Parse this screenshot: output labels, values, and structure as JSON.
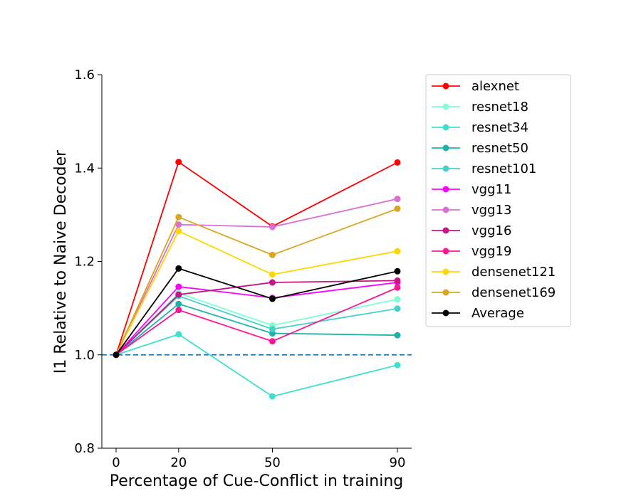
{
  "chart_data": {
    "type": "line",
    "title": "",
    "xlabel": "Percentage of Cue-Conflict in training",
    "ylabel": "I1 Relative to Naive Decoder",
    "x": [
      0,
      20,
      50,
      90
    ],
    "xticks": [
      "0",
      "20",
      "50",
      "90"
    ],
    "ylim": [
      0.8,
      1.6
    ],
    "yticks": [
      "0.8",
      "1.0",
      "1.2",
      "1.4",
      "1.6"
    ],
    "grid": false,
    "legend_position": "outside-right",
    "reference_line": {
      "y": 1.0,
      "style": "dashed",
      "color": "#1f77b4"
    },
    "series": [
      {
        "name": "alexnet",
        "color": "#ff0000",
        "values": [
          1.0,
          1.413,
          1.275,
          1.412
        ]
      },
      {
        "name": "resnet18",
        "color": "#7fffd4",
        "values": [
          1.0,
          1.132,
          1.063,
          1.119
        ]
      },
      {
        "name": "resnet34",
        "color": "#40e0d0",
        "values": [
          1.0,
          1.044,
          0.911,
          0.978
        ]
      },
      {
        "name": "resnet50",
        "color": "#20b2aa",
        "values": [
          1.0,
          1.109,
          1.046,
          1.042
        ]
      },
      {
        "name": "resnet101",
        "color": "#48d1cc",
        "values": [
          1.0,
          1.126,
          1.055,
          1.099
        ]
      },
      {
        "name": "vgg11",
        "color": "#ff00ff",
        "values": [
          1.0,
          1.146,
          1.122,
          1.155
        ]
      },
      {
        "name": "vgg13",
        "color": "#da70d6",
        "values": [
          1.0,
          1.279,
          1.274,
          1.334
        ]
      },
      {
        "name": "vgg16",
        "color": "#c71585",
        "values": [
          1.0,
          1.129,
          1.155,
          1.159
        ]
      },
      {
        "name": "vgg19",
        "color": "#ff1493",
        "values": [
          1.0,
          1.096,
          1.029,
          1.144
        ]
      },
      {
        "name": "densenet121",
        "color": "#ffd700",
        "values": [
          1.0,
          1.265,
          1.172,
          1.222
        ]
      },
      {
        "name": "densenet169",
        "color": "#daa520",
        "values": [
          1.0,
          1.295,
          1.214,
          1.313
        ]
      },
      {
        "name": "Average",
        "color": "#000000",
        "values": [
          1.0,
          1.185,
          1.12,
          1.179
        ]
      }
    ]
  }
}
